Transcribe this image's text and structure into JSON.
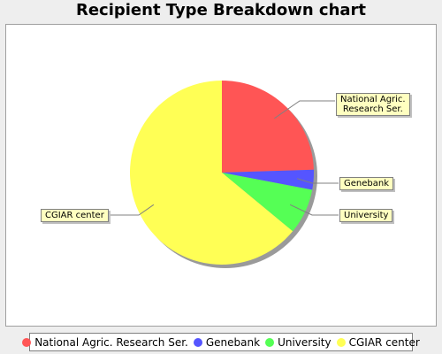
{
  "chart_data": {
    "type": "pie",
    "title": "Recipient Type Breakdown chart",
    "slices": [
      {
        "label": "National Agric. Research Ser.",
        "callout": "National Agric.\nResearch Ser.",
        "value": 24.5,
        "color": "#ff5555"
      },
      {
        "label": "Genebank",
        "callout": "Genebank",
        "value": 3.5,
        "color": "#5555ff"
      },
      {
        "label": "University",
        "callout": "University",
        "value": 8.0,
        "color": "#55ff55"
      },
      {
        "label": "CGIAR center",
        "callout": "CGIAR center",
        "value": 64.0,
        "color": "#ffff55"
      }
    ],
    "legend_position": "bottom"
  }
}
